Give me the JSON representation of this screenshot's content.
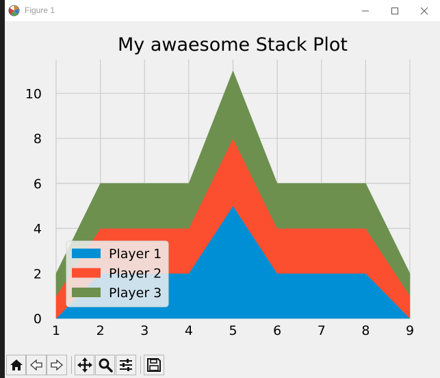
{
  "window": {
    "title": "Figure 1",
    "icons": {
      "app": "matplotlib-logo-icon",
      "minimize": "minimize-icon",
      "maximize": "maximize-icon",
      "close": "close-icon"
    }
  },
  "toolbar": {
    "buttons": [
      {
        "name": "home-button",
        "icon": "home-icon"
      },
      {
        "name": "back-button",
        "icon": "back-arrow-icon"
      },
      {
        "name": "forward-button",
        "icon": "forward-arrow-icon"
      },
      {
        "name": "pan-button",
        "icon": "move-icon"
      },
      {
        "name": "zoom-button",
        "icon": "zoom-icon"
      },
      {
        "name": "configure-subplots-button",
        "icon": "sliders-icon"
      },
      {
        "name": "save-button",
        "icon": "save-icon"
      }
    ]
  },
  "chart_data": {
    "type": "area",
    "stacked": true,
    "title": "My awaesome Stack Plot",
    "xlabel": "",
    "ylabel": "",
    "x": [
      1,
      2,
      3,
      4,
      5,
      6,
      7,
      8,
      9
    ],
    "xticks": [
      "1",
      "2",
      "3",
      "4",
      "5",
      "6",
      "7",
      "8",
      "9"
    ],
    "yticks": [
      "0",
      "2",
      "4",
      "6",
      "8",
      "10"
    ],
    "xlim": [
      1,
      9
    ],
    "ylim": [
      0,
      11.5
    ],
    "grid": true,
    "legend_position": "lower-left",
    "series": [
      {
        "name": "Player 1",
        "color": "#008fd5",
        "values": [
          0,
          2,
          2,
          2,
          5,
          2,
          2,
          2,
          0
        ]
      },
      {
        "name": "Player 2",
        "color": "#fc4f30",
        "values": [
          1,
          2,
          2,
          2,
          3,
          2,
          2,
          2,
          1
        ]
      },
      {
        "name": "Player 3",
        "color": "#6d904f",
        "values": [
          1,
          2,
          2,
          2,
          3,
          2,
          2,
          2,
          1
        ]
      }
    ]
  }
}
